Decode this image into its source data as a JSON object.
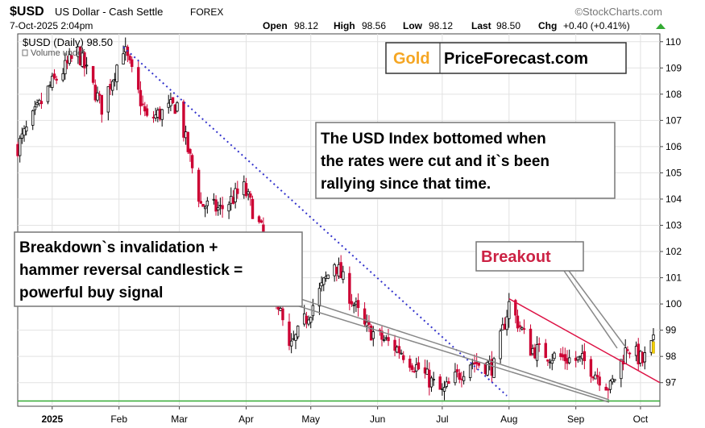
{
  "header": {
    "symbol": "$USD",
    "name": "US Dollar - Cash Settle",
    "exchange": "FOREX",
    "watermark": "©StockCharts.com",
    "datetime": "7-Oct-2025 2:04pm",
    "open_label": "Open",
    "open": "98.12",
    "high_label": "High",
    "high": "98.56",
    "low_label": "Low",
    "low": "98.12",
    "last_label": "Last",
    "last": "98.50",
    "chg_label": "Chg",
    "chg": "+0.40 (+0.41%)",
    "series_label": "$USD (Daily) 98.50",
    "volume_label": "Volume undef"
  },
  "logo": {
    "gold": "Gold",
    "rest": "PriceForecast.com",
    "gold_color": "#f5a623"
  },
  "annotations": {
    "bottom_note": [
      "The USD Index bottomed when",
      "the rates were cut and it`s been",
      "rallying since that time."
    ],
    "signal_note": [
      "Breakdown`s invalidation +",
      "hammer reversal candlestick =",
      "powerful buy signal"
    ],
    "breakout": "Breakout"
  },
  "colors": {
    "up": "#000000",
    "down": "#cc0033",
    "trendline": "#3333cc",
    "support": "#33aa33",
    "resistance": "#dd1144",
    "breakout_text": "#cc2244",
    "chg_arrow": "#33aa33"
  },
  "chart_data": {
    "type": "candlestick",
    "x_axis": {
      "start": "2024-12-16",
      "end": "2025-10-10",
      "ticks": [
        {
          "date": "2025-01-01",
          "label": "2025"
        },
        {
          "date": "2025-02-01",
          "label": "Feb"
        },
        {
          "date": "2025-03-01",
          "label": "Mar"
        },
        {
          "date": "2025-04-01",
          "label": "Apr"
        },
        {
          "date": "2025-05-01",
          "label": "May"
        },
        {
          "date": "2025-06-01",
          "label": "Jun"
        },
        {
          "date": "2025-07-01",
          "label": "Jul"
        },
        {
          "date": "2025-08-01",
          "label": "Aug"
        },
        {
          "date": "2025-09-01",
          "label": "Sep"
        },
        {
          "date": "2025-10-01",
          "label": "Oct"
        }
      ]
    },
    "y_axis": {
      "min": 96.1,
      "max": 110.3,
      "ticks": [
        "97",
        "98",
        "99",
        "100",
        "101",
        "102",
        "103",
        "104",
        "105",
        "106",
        "107",
        "108",
        "109",
        "110"
      ]
    },
    "grid": true,
    "close_path": [
      {
        "date": "2024-12-16",
        "close": 106.0
      },
      {
        "date": "2024-12-31",
        "close": 108.3
      },
      {
        "date": "2025-01-13",
        "close": 109.6
      },
      {
        "date": "2025-01-24",
        "close": 107.5
      },
      {
        "date": "2025-02-03",
        "close": 109.8
      },
      {
        "date": "2025-02-14",
        "close": 107.0
      },
      {
        "date": "2025-02-28",
        "close": 107.6
      },
      {
        "date": "2025-03-11",
        "close": 103.8
      },
      {
        "date": "2025-03-20",
        "close": 103.6
      },
      {
        "date": "2025-03-31",
        "close": 104.4
      },
      {
        "date": "2025-04-08",
        "close": 102.8
      },
      {
        "date": "2025-04-21",
        "close": 98.2
      },
      {
        "date": "2025-05-01",
        "close": 99.8
      },
      {
        "date": "2025-05-12",
        "close": 101.6
      },
      {
        "date": "2025-05-26",
        "close": 99.1
      },
      {
        "date": "2025-06-12",
        "close": 98.2
      },
      {
        "date": "2025-07-01",
        "close": 96.6
      },
      {
        "date": "2025-07-14",
        "close": 97.8
      },
      {
        "date": "2025-07-25",
        "close": 97.6
      },
      {
        "date": "2025-08-01",
        "close": 100.0
      },
      {
        "date": "2025-08-11",
        "close": 98.3
      },
      {
        "date": "2025-08-22",
        "close": 98.0
      },
      {
        "date": "2025-09-05",
        "close": 97.8
      },
      {
        "date": "2025-09-17",
        "close": 96.8
      },
      {
        "date": "2025-09-25",
        "close": 98.4
      },
      {
        "date": "2025-10-02",
        "close": 97.8
      },
      {
        "date": "2025-10-07",
        "close": 98.5
      }
    ],
    "trendlines": [
      {
        "name": "dotted-downtrend",
        "from": {
          "date": "2025-02-03",
          "value": 109.8
        },
        "to": {
          "date": "2025-07-31",
          "value": 96.5
        },
        "style": "dotted"
      },
      {
        "name": "resistance",
        "from": {
          "date": "2025-08-01",
          "value": 100.2
        },
        "to": {
          "date": "2025-10-10",
          "value": 97.0
        },
        "style": "solid"
      },
      {
        "name": "support",
        "from": {
          "date": "2024-12-16",
          "value": 96.3
        },
        "to": {
          "date": "2025-10-10",
          "value": 96.3
        },
        "style": "solid"
      }
    ]
  }
}
